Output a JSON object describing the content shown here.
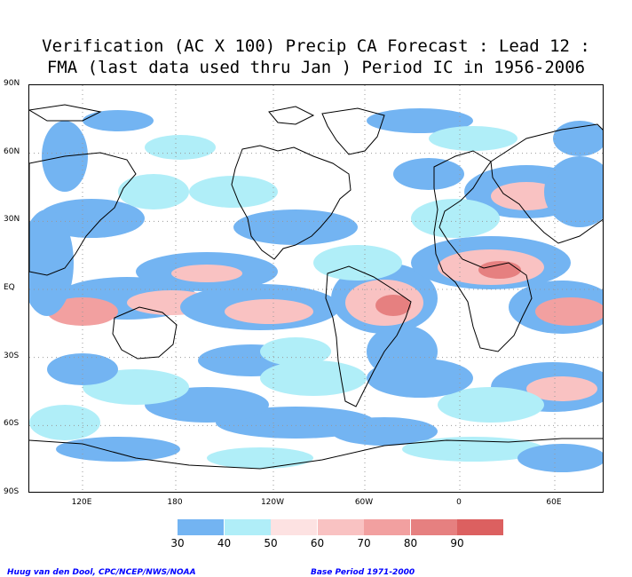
{
  "title": {
    "line1": "Verification (AC X 100) Precip CA Forecast : Lead 12 :",
    "line2": "FMA (last data used thru Jan ) Period IC in 1956-2006"
  },
  "map": {
    "lat_labels": [
      "90N",
      "60N",
      "30N",
      "EQ",
      "30S",
      "60S",
      "90S"
    ],
    "lon_labels": [
      "120E",
      "180",
      "120W",
      "60W",
      "0",
      "60E"
    ]
  },
  "legend": {
    "labels": [
      "30",
      "40",
      "50",
      "60",
      "70",
      "80",
      "90"
    ],
    "colors": [
      "#73b4f2",
      "#b0eef8",
      "#fde2e2",
      "#f9c2c2",
      "#f2a0a0",
      "#e68080",
      "#dc6060"
    ]
  },
  "credits": {
    "author": "Huug van den Dool, CPC/NCEP/NWS/NOAA",
    "base_period": "Base Period 1971-2000"
  }
}
